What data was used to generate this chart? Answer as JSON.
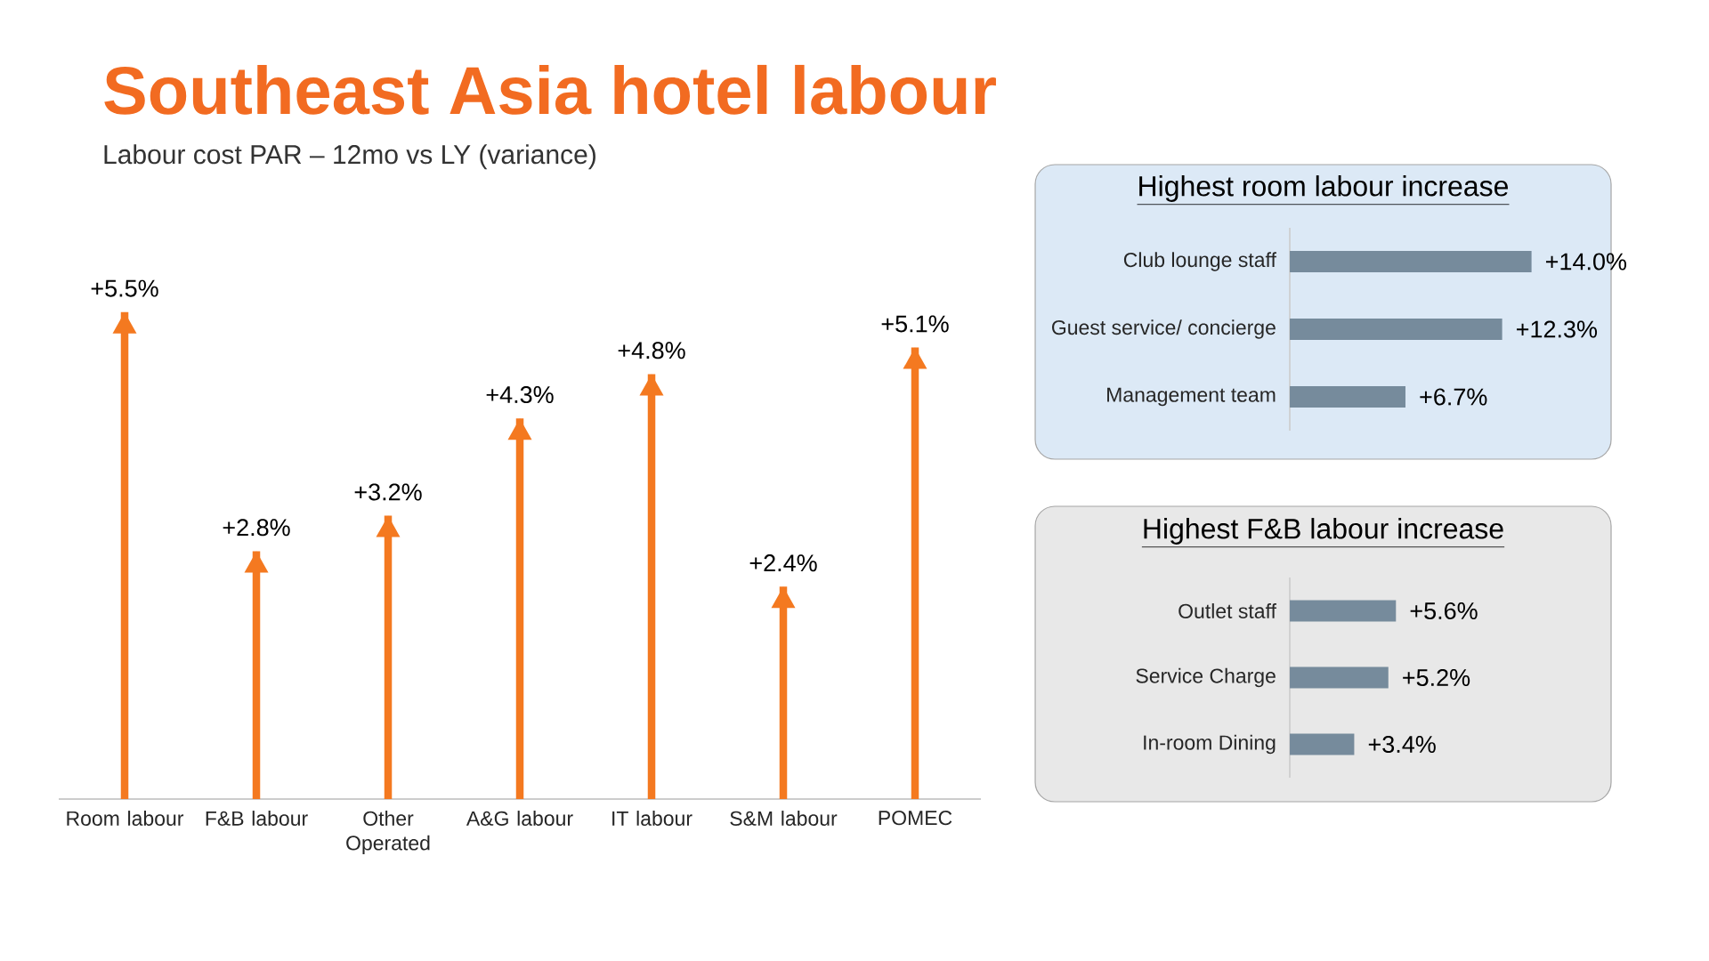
{
  "chart_data": [
    {
      "type": "bar",
      "title": "Southeast Asia hotel labour",
      "subtitle": "Labour cost PAR – 12mo vs LY (variance)",
      "categories": [
        "Room labour",
        "F&B labour",
        "Other Operated",
        "A&G labour",
        "IT labour",
        "S&M labour",
        "POMEC"
      ],
      "values": [
        5.5,
        2.8,
        3.2,
        4.3,
        4.8,
        2.4,
        5.1
      ],
      "color": "#f47920",
      "value_labels": [
        "+5.5%",
        "+2.8%",
        "+3.2%",
        "+4.3%",
        "+4.8%",
        "+2.4%",
        "+5.1%"
      ]
    },
    {
      "type": "bar",
      "orientation": "horizontal",
      "title": "Highest room labour increase",
      "categories": [
        "Club lounge staff",
        "Guest service/ concierge",
        "Management team"
      ],
      "values": [
        14.0,
        12.3,
        6.7
      ],
      "color": "#768b9c",
      "value_labels": [
        "+14.0%",
        "+12.3%",
        "+6.7%"
      ]
    },
    {
      "type": "bar",
      "orientation": "horizontal",
      "title": "Highest F&B labour increase",
      "categories": [
        "Outlet staff",
        "Service Charge",
        "In-room Dining"
      ],
      "values": [
        5.6,
        5.2,
        3.4
      ],
      "color": "#768b9c",
      "value_labels": [
        "+5.6%",
        "+5.2%",
        "+3.4%"
      ]
    }
  ]
}
